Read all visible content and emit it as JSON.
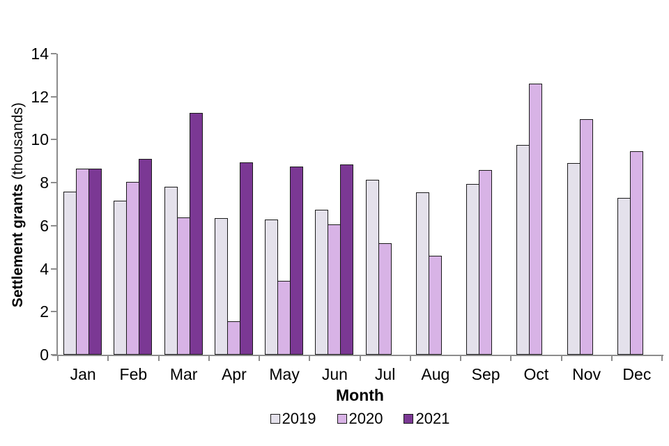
{
  "chart_data": {
    "type": "bar",
    "title": "",
    "xlabel": "Month",
    "ylabel_bold": "Settlement grants",
    "ylabel_regular": "(thousands)",
    "categories": [
      "Jan",
      "Feb",
      "Mar",
      "Apr",
      "May",
      "Jun",
      "Jul",
      "Aug",
      "Sep",
      "Oct",
      "Nov",
      "Dec"
    ],
    "series": [
      {
        "name": "2019",
        "color": "#E4E1EB",
        "values": [
          7.6,
          7.15,
          7.8,
          6.35,
          6.3,
          6.75,
          8.15,
          7.55,
          7.95,
          9.75,
          8.9,
          7.3
        ]
      },
      {
        "name": "2020",
        "color": "#D8B3E6",
        "values": [
          8.65,
          8.05,
          6.4,
          1.55,
          3.45,
          6.05,
          5.2,
          4.6,
          8.6,
          12.6,
          10.95,
          9.45
        ]
      },
      {
        "name": "2021",
        "color": "#7B3894",
        "values": [
          8.65,
          9.1,
          11.25,
          8.95,
          8.75,
          8.85,
          null,
          null,
          null,
          null,
          null,
          null
        ]
      }
    ],
    "ylim": [
      0,
      14
    ],
    "yticks": [
      0,
      2,
      4,
      6,
      8,
      10,
      12,
      14
    ],
    "grid": false,
    "legend_position": "bottom",
    "bar_outline_color": "#1A1A1A",
    "axis_color": "#8C8C8C",
    "background_color": "#FFFFFF"
  }
}
